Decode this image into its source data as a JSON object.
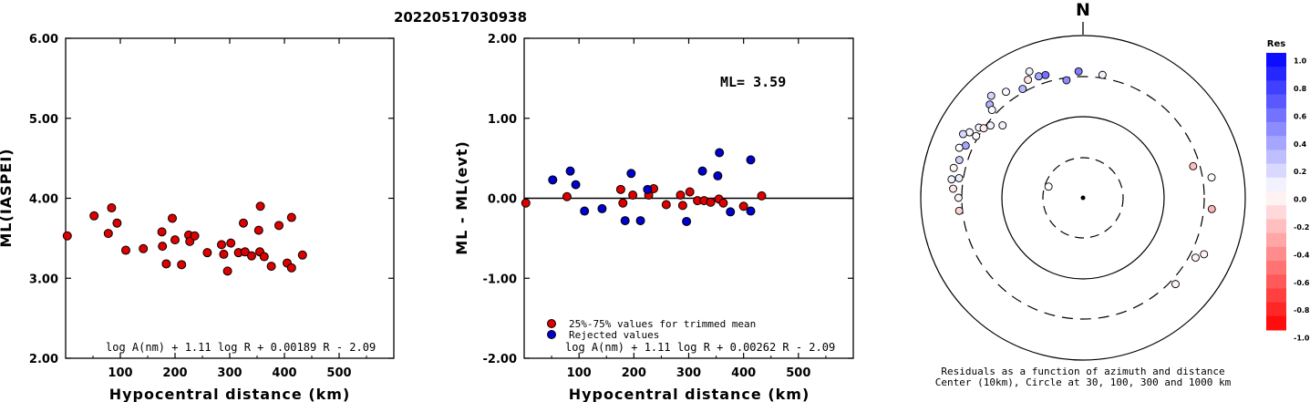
{
  "event_id": "20220517030938",
  "colors": {
    "red": "#dd0000",
    "blue": "#0000cc",
    "black": "#000000"
  },
  "chart_data": [
    {
      "type": "scatter",
      "xlabel": "Hypocentral distance (km)",
      "ylabel": "ML(IASPEI)",
      "xlim": [
        0,
        600
      ],
      "ylim": [
        2.0,
        6.0
      ],
      "xticks": [
        100,
        200,
        300,
        400,
        500
      ],
      "xtick_labels": [
        "100",
        "200",
        "300",
        "400",
        "500"
      ],
      "yticks": [
        2,
        3,
        4,
        5,
        6
      ],
      "ytick_labels": [
        "2.00",
        "3.00",
        "4.00",
        "5.00",
        "6.00"
      ],
      "formula": "log A(nm) + 1.11 log R + 0.00189 R - 2.09",
      "points": [
        {
          "x": 3,
          "y": 3.53
        },
        {
          "x": 52,
          "y": 3.78
        },
        {
          "x": 78,
          "y": 3.56
        },
        {
          "x": 84,
          "y": 3.88
        },
        {
          "x": 94,
          "y": 3.69
        },
        {
          "x": 110,
          "y": 3.35
        },
        {
          "x": 142,
          "y": 3.37
        },
        {
          "x": 176,
          "y": 3.58
        },
        {
          "x": 177,
          "y": 3.4
        },
        {
          "x": 184,
          "y": 3.18
        },
        {
          "x": 195,
          "y": 3.75
        },
        {
          "x": 200,
          "y": 3.48
        },
        {
          "x": 212,
          "y": 3.17
        },
        {
          "x": 225,
          "y": 3.54
        },
        {
          "x": 227,
          "y": 3.46
        },
        {
          "x": 236,
          "y": 3.53
        },
        {
          "x": 259,
          "y": 3.32
        },
        {
          "x": 285,
          "y": 3.42
        },
        {
          "x": 289,
          "y": 3.3
        },
        {
          "x": 296,
          "y": 3.09
        },
        {
          "x": 302,
          "y": 3.44
        },
        {
          "x": 316,
          "y": 3.32
        },
        {
          "x": 325,
          "y": 3.69
        },
        {
          "x": 328,
          "y": 3.33
        },
        {
          "x": 340,
          "y": 3.28
        },
        {
          "x": 353,
          "y": 3.6
        },
        {
          "x": 355,
          "y": 3.33
        },
        {
          "x": 356,
          "y": 3.9
        },
        {
          "x": 363,
          "y": 3.27
        },
        {
          "x": 376,
          "y": 3.15
        },
        {
          "x": 390,
          "y": 3.66
        },
        {
          "x": 405,
          "y": 3.19
        },
        {
          "x": 413,
          "y": 3.76
        },
        {
          "x": 413,
          "y": 3.13
        },
        {
          "x": 433,
          "y": 3.29
        }
      ]
    },
    {
      "type": "scatter",
      "xlabel": "Hypocentral distance (km)",
      "ylabel": "ML - ML(evt)",
      "xlim": [
        0,
        600
      ],
      "ylim": [
        -2.0,
        2.0
      ],
      "xticks": [
        100,
        200,
        300,
        400,
        500
      ],
      "xtick_labels": [
        "100",
        "200",
        "300",
        "400",
        "500"
      ],
      "yticks": [
        -2,
        -1,
        0,
        1,
        2
      ],
      "ytick_labels": [
        "-2.00",
        "-1.00",
        "0.00",
        "1.00",
        "2.00"
      ],
      "annotation": "ML= 3.59",
      "formula": "log A(nm) + 1.11 log R + 0.00262 R - 2.09",
      "legend": [
        {
          "label": "25%-75% values for trimmed mean",
          "color": "#dd0000"
        },
        {
          "label": "Rejected values",
          "color": "#0000cc"
        }
      ],
      "series": [
        {
          "name": "25%-75% values for trimmed mean",
          "color": "#dd0000",
          "points": [
            {
              "x": 3,
              "y": -0.06
            },
            {
              "x": 78,
              "y": 0.02
            },
            {
              "x": 176,
              "y": 0.11
            },
            {
              "x": 180,
              "y": -0.06
            },
            {
              "x": 198,
              "y": 0.04
            },
            {
              "x": 227,
              "y": 0.04
            },
            {
              "x": 236,
              "y": 0.12
            },
            {
              "x": 259,
              "y": -0.08
            },
            {
              "x": 285,
              "y": 0.04
            },
            {
              "x": 289,
              "y": -0.09
            },
            {
              "x": 302,
              "y": 0.08
            },
            {
              "x": 316,
              "y": -0.03
            },
            {
              "x": 328,
              "y": -0.03
            },
            {
              "x": 340,
              "y": -0.05
            },
            {
              "x": 355,
              "y": -0.01
            },
            {
              "x": 363,
              "y": -0.06
            },
            {
              "x": 400,
              "y": -0.1
            },
            {
              "x": 433,
              "y": 0.03
            }
          ]
        },
        {
          "name": "Rejected values",
          "color": "#0000cc",
          "points": [
            {
              "x": 52,
              "y": 0.23
            },
            {
              "x": 84,
              "y": 0.34
            },
            {
              "x": 94,
              "y": 0.17
            },
            {
              "x": 110,
              "y": -0.16
            },
            {
              "x": 142,
              "y": -0.13
            },
            {
              "x": 184,
              "y": -0.28
            },
            {
              "x": 195,
              "y": 0.31
            },
            {
              "x": 212,
              "y": -0.28
            },
            {
              "x": 225,
              "y": 0.11
            },
            {
              "x": 296,
              "y": -0.29
            },
            {
              "x": 325,
              "y": 0.34
            },
            {
              "x": 353,
              "y": 0.28
            },
            {
              "x": 356,
              "y": 0.57
            },
            {
              "x": 376,
              "y": -0.17
            },
            {
              "x": 413,
              "y": 0.48
            },
            {
              "x": 413,
              "y": -0.16
            }
          ]
        }
      ]
    },
    {
      "type": "polar-scatter",
      "north_label": "N",
      "ring_labels_km": [
        30,
        100,
        300,
        1000
      ],
      "caption_line1": "Residuals as a function of azimuth and distance",
      "caption_line2": "Center (10km), Circle at 30, 100, 300 and 1000 km",
      "colorbar": {
        "title": "Res",
        "min": -1.0,
        "max": 1.0,
        "tick_labels": [
          "1.0",
          "0.8",
          "0.6",
          "0.4",
          "0.2",
          "0.0",
          "-0.2",
          "-0.4",
          "-0.6",
          "-0.8",
          "-1.0"
        ]
      },
      "stations": [
        {
          "az": 337,
          "dist": 480,
          "res": 0.05
        },
        {
          "az": 312,
          "dist": 210,
          "res": 0.05
        },
        {
          "az": 318,
          "dist": 480,
          "res": 0.17
        },
        {
          "az": 335,
          "dist": 390,
          "res": -0.1
        },
        {
          "az": 324,
          "dist": 400,
          "res": 0.02
        },
        {
          "az": 340,
          "dist": 380,
          "res": 0.35
        },
        {
          "az": 343,
          "dist": 370,
          "res": 0.55
        },
        {
          "az": 304,
          "dist": 340,
          "res": 0.05
        },
        {
          "az": 308,
          "dist": 270,
          "res": 0.05
        },
        {
          "az": 315,
          "dist": 410,
          "res": 0.3
        },
        {
          "az": 305,
          "dist": 300,
          "res": -0.08
        },
        {
          "az": 300,
          "dist": 320,
          "res": 0.01
        },
        {
          "az": 294,
          "dist": 370,
          "res": 0.35
        },
        {
          "az": 331,
          "dist": 330,
          "res": 0.28
        },
        {
          "az": 300,
          "dist": 400,
          "res": 0.03
        },
        {
          "az": 298,
          "dist": 460,
          "res": 0.15
        },
        {
          "az": 292,
          "dist": 430,
          "res": 0.0
        },
        {
          "az": 287,
          "dist": 380,
          "res": 0.2
        },
        {
          "az": 279,
          "dist": 340,
          "res": 0.07
        },
        {
          "az": 278,
          "dist": 420,
          "res": 0.05
        },
        {
          "az": 283,
          "dist": 420,
          "res": -0.03
        },
        {
          "az": 274,
          "dist": 390,
          "res": -0.1
        },
        {
          "az": 270,
          "dist": 330,
          "res": -0.05
        },
        {
          "az": 264,
          "dist": 330,
          "res": -0.18
        },
        {
          "az": 352,
          "dist": 280,
          "res": 0.45
        },
        {
          "az": 74,
          "dist": 250,
          "res": -0.25
        },
        {
          "az": 81,
          "dist": 390,
          "res": 0.02
        },
        {
          "az": 95,
          "dist": 380,
          "res": -0.3
        },
        {
          "az": 115,
          "dist": 430,
          "res": -0.05
        },
        {
          "az": 118,
          "dist": 360,
          "res": -0.05
        },
        {
          "az": 133,
          "dist": 350,
          "res": -0.04
        },
        {
          "az": 9,
          "dist": 330,
          "res": 0.05
        },
        {
          "az": 314,
          "dist": 350,
          "res": 0.02
        },
        {
          "az": 288,
          "dist": 27,
          "res": 0.0
        },
        {
          "az": 358,
          "dist": 350,
          "res": 0.5
        }
      ]
    }
  ]
}
